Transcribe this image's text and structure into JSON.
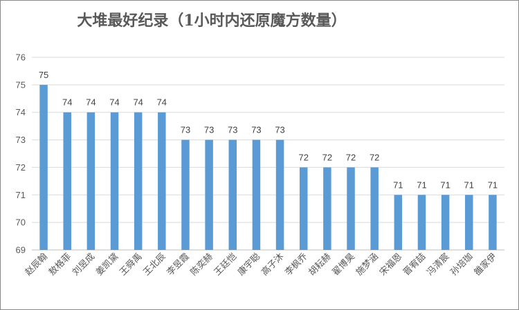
{
  "chart_data": {
    "type": "bar",
    "title": "大堆最好纪录（1小时内还原魔方数量）",
    "categories": [
      "赵辰翰",
      "敖格菲",
      "刘昱成",
      "姜凯黛",
      "王舜禹",
      "王北辰",
      "李昱霞",
      "陈奕赫",
      "王廷恺",
      "康宇聪",
      "高子沐",
      "李枫乔",
      "胡耘赫",
      "翟博昊",
      "施梦涵",
      "宋福恩",
      "晋宥喆",
      "冯清宸",
      "孙培珈",
      "雒家伊"
    ],
    "values": [
      75,
      74,
      74,
      74,
      74,
      74,
      73,
      73,
      73,
      73,
      73,
      72,
      72,
      72,
      72,
      71,
      71,
      71,
      71,
      71
    ],
    "ylim": [
      69,
      76
    ],
    "yticks": [
      69,
      70,
      71,
      72,
      73,
      74,
      75,
      76
    ],
    "xlabel": "",
    "ylabel": "",
    "grid": true,
    "legend": "none",
    "bar_color": "#5b9bd5"
  }
}
